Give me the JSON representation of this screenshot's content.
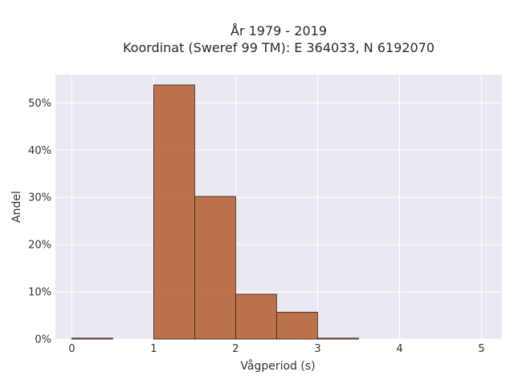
{
  "chart_data": {
    "type": "bar",
    "title_lines": [
      "År 1979 - 2019",
      "Koordinat (Sweref 99 TM): E 364033, N 6192070"
    ],
    "xlabel": "Vågperiod (s)",
    "ylabel": "Andel",
    "xlim": [
      -0.2,
      5.25
    ],
    "ylim": [
      0,
      56
    ],
    "xticks": [
      0,
      1,
      2,
      3,
      4,
      5
    ],
    "yticks": [
      0,
      10,
      20,
      30,
      40,
      50
    ],
    "ytick_suffix": "%",
    "grid": true,
    "bins": [
      {
        "x0": 0.0,
        "x1": 0.5,
        "value": 0.2
      },
      {
        "x0": 0.5,
        "x1": 1.0,
        "value": 0.0
      },
      {
        "x0": 1.0,
        "x1": 1.5,
        "value": 53.8
      },
      {
        "x0": 1.5,
        "x1": 2.0,
        "value": 30.2
      },
      {
        "x0": 2.0,
        "x1": 2.5,
        "value": 9.5
      },
      {
        "x0": 2.5,
        "x1": 3.0,
        "value": 5.7
      },
      {
        "x0": 3.0,
        "x1": 3.5,
        "value": 0.2
      },
      {
        "x0": 3.5,
        "x1": 4.0,
        "value": 0.0
      },
      {
        "x0": 4.0,
        "x1": 4.5,
        "value": 0.0
      },
      {
        "x0": 4.5,
        "x1": 5.0,
        "value": 0.0
      }
    ],
    "colors": {
      "bar_fill": "#b86a40",
      "bar_edge": "#3b2418",
      "plot_background": "#e9e9f1",
      "grid": "#ffffff"
    }
  }
}
